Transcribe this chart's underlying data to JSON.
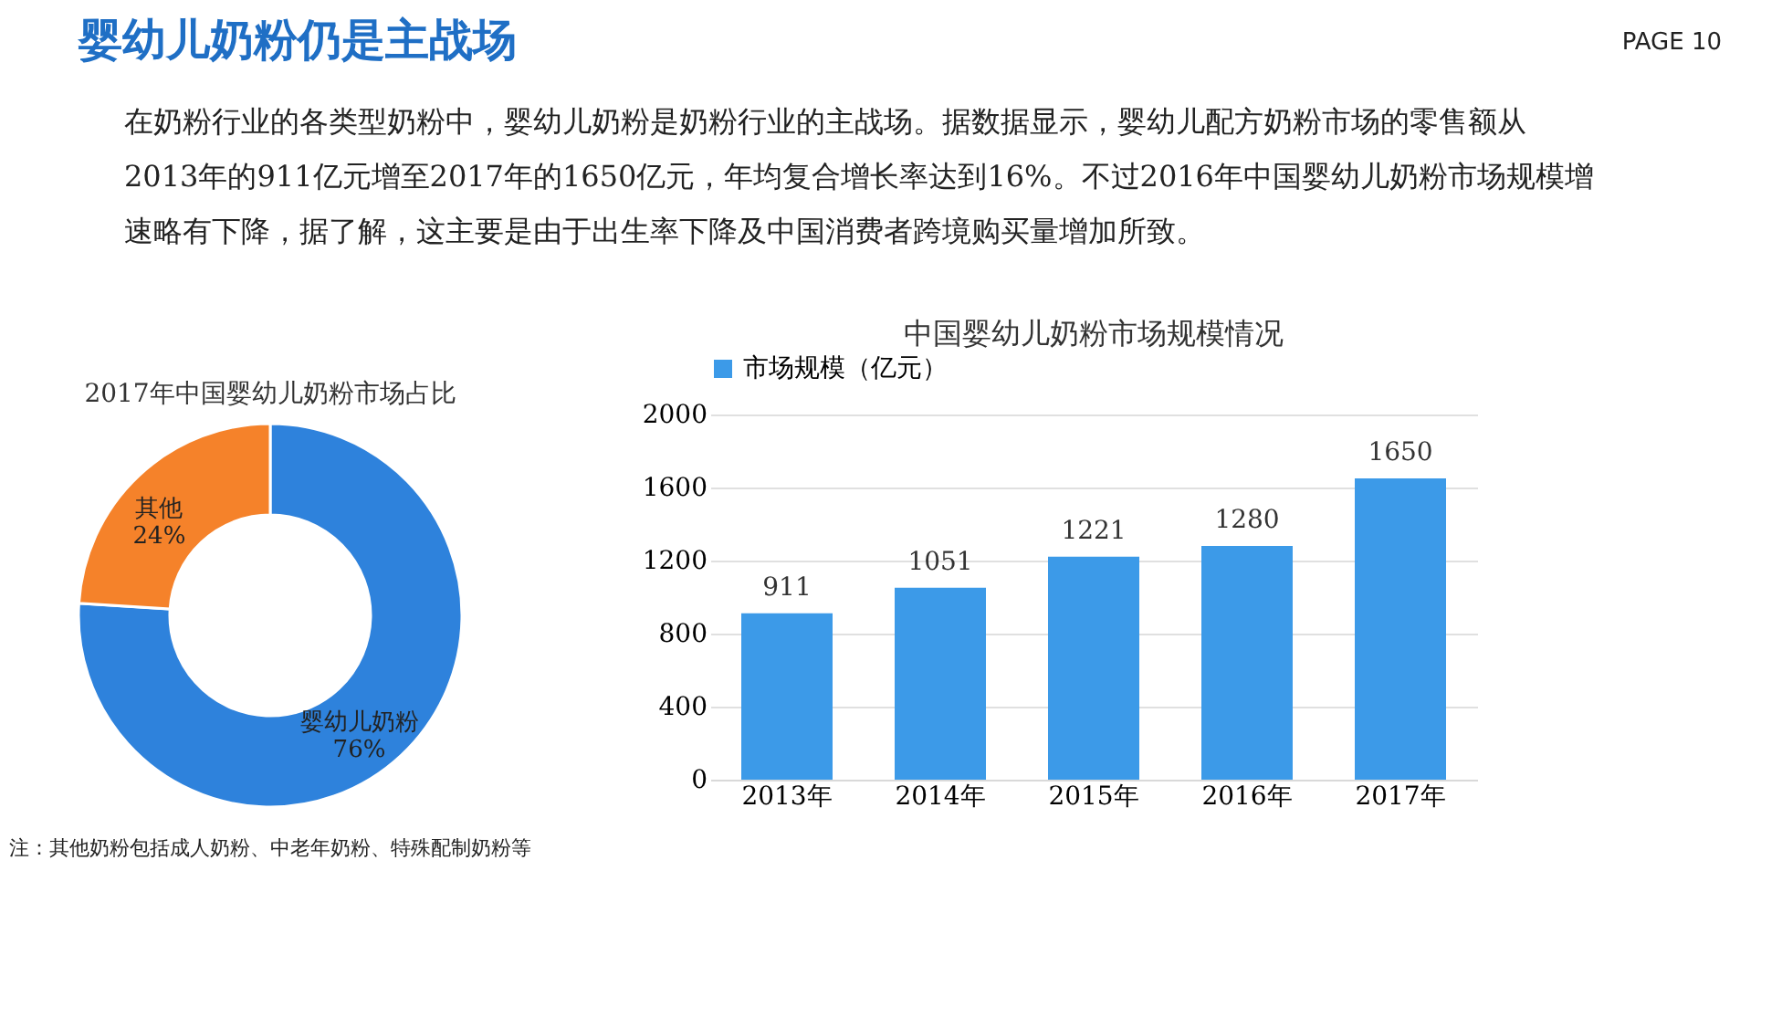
{
  "chart_data": [
    {
      "type": "other",
      "title": "婴幼儿奶粉仍是主战场",
      "annotations": [
        "在奶粉行业的各类型奶粉中，婴幼儿奶粉是奶粉行业的主战场。据数据显示，婴幼儿配方奶粉市场的零售额从2013年的911亿元增至2017年的1650亿元，年均复合增长率达到16%。不过2016年中国婴幼儿奶粉市场规模增速略有下降，据了解，这主要是由于出生率下降及中国消费者跨境购买量增加所致。",
        "PAGE 10"
      ]
    },
    {
      "type": "donut",
      "title": "2017年中国婴幼儿奶粉市场占比",
      "categories": [
        "婴幼儿奶粉",
        "其他"
      ],
      "values": [
        76,
        24
      ],
      "value_labels": [
        "76%",
        "24%"
      ],
      "colors": [
        "#2e82dc",
        "#f5822a"
      ],
      "annotations": [
        "注：其他奶粉包括成人奶粉、中老年奶粉、特殊配制奶粉等"
      ]
    },
    {
      "type": "bar",
      "title": "中国婴幼儿奶粉市场规模情况",
      "categories": [
        "2013年",
        "2014年",
        "2015年",
        "2016年",
        "2017年"
      ],
      "series": [
        {
          "name": "市场规模（亿元）",
          "color": "#3c9ae8",
          "values": [
            911,
            1051,
            1221,
            1280,
            1650
          ]
        }
      ],
      "ylim": [
        0,
        2000
      ],
      "yticks": [
        0,
        400,
        800,
        1200,
        1600,
        2000
      ],
      "grid": "y",
      "legend": "top",
      "data_labels": true
    }
  ]
}
